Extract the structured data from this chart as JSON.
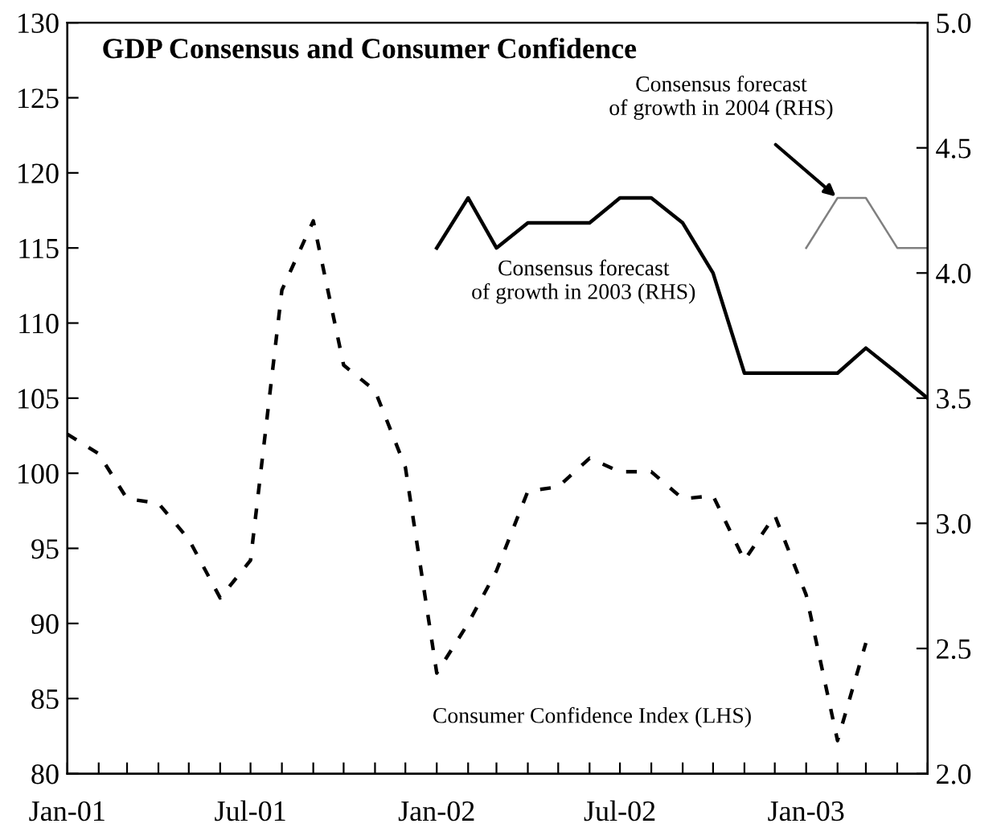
{
  "chart_data": {
    "type": "line",
    "title": "GDP Consensus and Consumer Confidence",
    "x": [
      "2001-01",
      "2001-02",
      "2001-03",
      "2001-04",
      "2001-05",
      "2001-06",
      "2001-07",
      "2001-08",
      "2001-09",
      "2001-10",
      "2001-11",
      "2001-12",
      "2002-01",
      "2002-02",
      "2002-03",
      "2002-04",
      "2002-05",
      "2002-06",
      "2002-07",
      "2002-08",
      "2002-09",
      "2002-10",
      "2002-11",
      "2002-12",
      "2003-01",
      "2003-02",
      "2003-03"
    ],
    "series": [
      {
        "name": "Consumer Confidence Index (LHS)",
        "color": "#000000",
        "line_style": "dashed",
        "values": [
          102.6,
          101.3,
          98.3,
          98.0,
          95.6,
          91.7,
          94.2,
          112.2,
          116.8,
          107.2,
          105.5,
          100.4,
          86.7,
          90.0,
          93.5,
          98.8,
          99.1,
          101.0,
          100.1,
          100.1,
          98.3,
          98.5,
          94.2,
          97.2,
          91.9,
          82.2,
          88.7
        ]
      },
      {
        "name": "Consensus forecast of growth in 2003 (RHS)",
        "color": "#000000",
        "line_style": "solid",
        "axis": "y2",
        "x": [
          "2002-01",
          "2002-02",
          "2002-03",
          "2002-04",
          "2002-05",
          "2002-06",
          "2002-07",
          "2002-08",
          "2002-09",
          "2002-10",
          "2002-11",
          "2002-12",
          "2003-01",
          "2003-02",
          "2003-03",
          "2003-04",
          "2003-05"
        ],
        "values": [
          4.1,
          4.3,
          4.1,
          4.2,
          4.2,
          4.2,
          4.3,
          4.3,
          4.2,
          4.0,
          3.6,
          3.6,
          3.6,
          3.6,
          3.7,
          3.6,
          3.5
        ]
      },
      {
        "name": "Consensus forecast of growth in 2004 (RHS)",
        "color": "#808080",
        "line_style": "solid",
        "axis": "y2",
        "x": [
          "2003-01",
          "2003-02",
          "2003-03",
          "2003-04",
          "2003-05"
        ],
        "values": [
          4.1,
          4.3,
          4.3,
          4.1,
          4.1
        ]
      }
    ],
    "xlim": [
      "2001-01",
      "2003-05"
    ],
    "xticks": [
      {
        "value": "2001-01",
        "label": "Jan-01"
      },
      {
        "value": "2001-02",
        "label": null
      },
      {
        "value": "2001-03",
        "label": null
      },
      {
        "value": "2001-04",
        "label": null
      },
      {
        "value": "2001-05",
        "label": null
      },
      {
        "value": "2001-06",
        "label": null
      },
      {
        "value": "2001-07",
        "label": "Jul-01"
      },
      {
        "value": "2001-08",
        "label": null
      },
      {
        "value": "2001-09",
        "label": null
      },
      {
        "value": "2001-10",
        "label": null
      },
      {
        "value": "2001-11",
        "label": null
      },
      {
        "value": "2001-12",
        "label": null
      },
      {
        "value": "2002-01",
        "label": "Jan-02"
      },
      {
        "value": "2002-02",
        "label": null
      },
      {
        "value": "2002-03",
        "label": null
      },
      {
        "value": "2002-04",
        "label": null
      },
      {
        "value": "2002-05",
        "label": null
      },
      {
        "value": "2002-06",
        "label": null
      },
      {
        "value": "2002-07",
        "label": "Jul-02"
      },
      {
        "value": "2002-08",
        "label": null
      },
      {
        "value": "2002-09",
        "label": null
      },
      {
        "value": "2002-10",
        "label": null
      },
      {
        "value": "2002-11",
        "label": null
      },
      {
        "value": "2002-12",
        "label": null
      },
      {
        "value": "2003-01",
        "label": "Jan-03"
      },
      {
        "value": "2003-02",
        "label": null
      },
      {
        "value": "2003-03",
        "label": null
      },
      {
        "value": "2003-04",
        "label": null
      },
      {
        "value": "2003-05",
        "label": null
      }
    ],
    "ylim": [
      80,
      130
    ],
    "yticks": [
      80,
      85,
      90,
      95,
      100,
      105,
      110,
      115,
      120,
      125,
      130
    ],
    "y2lim": [
      2.0,
      5.0
    ],
    "y2ticks": [
      {
        "value": 2.0,
        "label": "2.0"
      },
      {
        "value": 2.5,
        "label": "2.5"
      },
      {
        "value": 3.0,
        "label": "3.0"
      },
      {
        "value": 3.5,
        "label": "3.5"
      },
      {
        "value": 4.0,
        "label": "4.0"
      },
      {
        "value": 4.5,
        "label": "4.5"
      },
      {
        "value": 5.0,
        "label": "5.0"
      }
    ],
    "grid": false,
    "legend": false
  }
}
